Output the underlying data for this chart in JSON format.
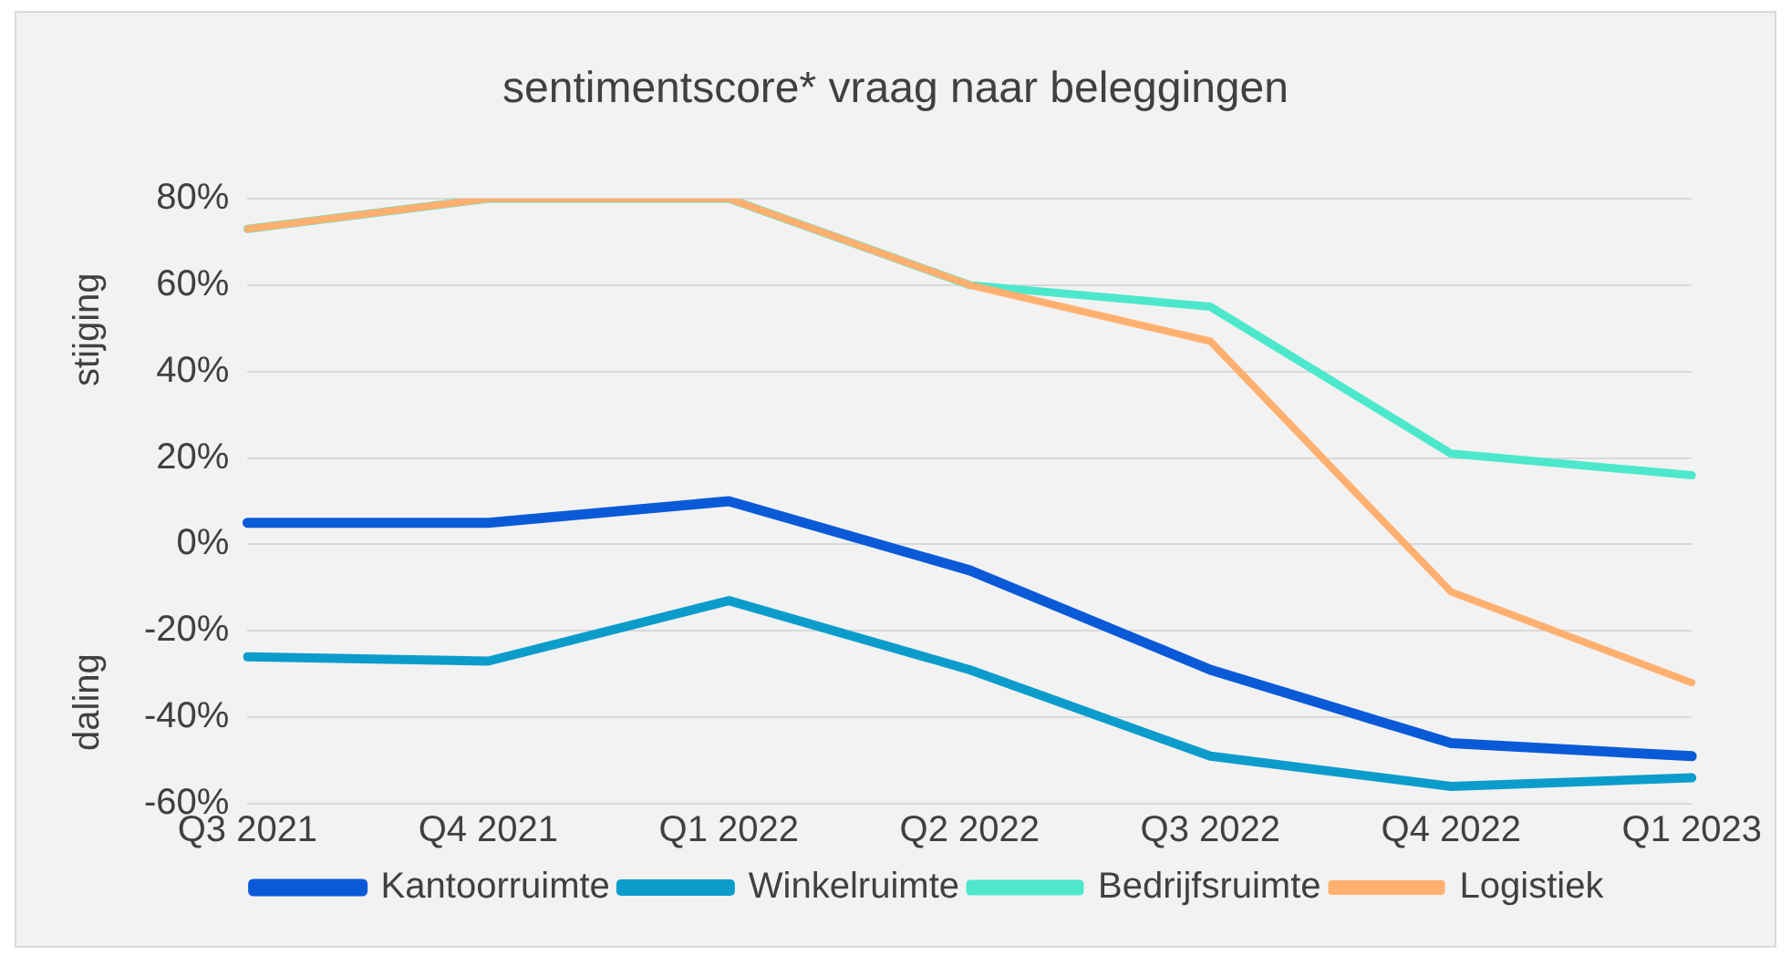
{
  "chart_data": {
    "type": "line",
    "title": "sentimentscore* vraag naar beleggingen",
    "categories": [
      "Q3 2021",
      "Q4 2021",
      "Q1 2022",
      "Q2 2022",
      "Q3 2022",
      "Q4 2022",
      "Q1 2023"
    ],
    "series": [
      {
        "name": "Kantoorruimte",
        "color": "#0a5ad8",
        "values": [
          5,
          5,
          10,
          -6,
          -29,
          -46,
          -49
        ]
      },
      {
        "name": "Winkelruimte",
        "color": "#0c9ccc",
        "values": [
          -26,
          -27,
          -13,
          -29,
          -49,
          -56,
          -54
        ]
      },
      {
        "name": "Bedrijfsruimte",
        "color": "#4de8cc",
        "values": [
          73,
          80,
          80,
          60,
          55,
          21,
          16
        ]
      },
      {
        "name": "Logistiek",
        "color": "#ffb070",
        "values": [
          73,
          80,
          80,
          60,
          47,
          -11,
          -32
        ]
      }
    ],
    "ylim": [
      -60,
      80
    ],
    "yticks": [
      {
        "value": -60,
        "label": "-60%"
      },
      {
        "value": -40,
        "label": "-40%"
      },
      {
        "value": -20,
        "label": "-20%"
      },
      {
        "value": 0,
        "label": "0%"
      },
      {
        "value": 20,
        "label": "20%"
      },
      {
        "value": 40,
        "label": "40%"
      },
      {
        "value": 60,
        "label": "60%"
      },
      {
        "value": 80,
        "label": "80%"
      }
    ],
    "grid": "y",
    "legend": "bottom",
    "marker": "none",
    "line_style": "solid",
    "annotations": [
      "stijging",
      "daling"
    ]
  }
}
